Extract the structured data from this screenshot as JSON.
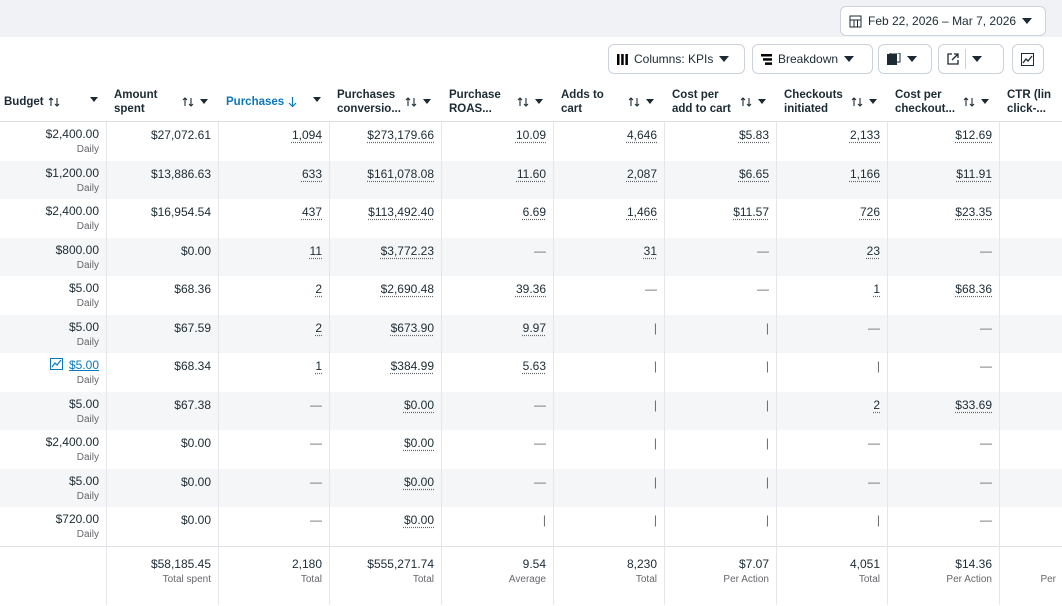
{
  "date_range": "Feb 22, 2026 – Mar 7, 2026",
  "toolbar": {
    "columns": "Columns: KPIs",
    "breakdown": "Breakdown"
  },
  "table": {
    "headers": [
      "Budget",
      "Amount spent",
      "Purchases",
      "Purchases conversio...",
      "Purchase ROAS...",
      "Adds to cart",
      "Cost per add to cart",
      "Checkouts initiated",
      "Cost per checkout...",
      "CTR (lin click-..."
    ],
    "rows": [
      {
        "cells": [
          "$2,400.00",
          "$27,072.61",
          "1,094",
          "$273,179.66",
          "10.09",
          "4,646",
          "$5.83",
          "2,133",
          "$12.69"
        ],
        "budget_note": "Daily"
      },
      {
        "cells": [
          "$1,200.00",
          "$13,886.63",
          "633",
          "$161,078.08",
          "11.60",
          "2,087",
          "$6.65",
          "1,166",
          "$11.91"
        ],
        "budget_note": "Daily"
      },
      {
        "cells": [
          "$2,400.00",
          "$16,954.54",
          "437",
          "$113,492.40",
          "6.69",
          "1,466",
          "$11.57",
          "726",
          "$23.35"
        ],
        "budget_note": "Daily"
      },
      {
        "cells": [
          "$800.00",
          "$0.00",
          "11",
          "$3,772.23",
          "—",
          "31",
          "—",
          "23",
          "—"
        ],
        "budget_note": "Daily"
      },
      {
        "cells": [
          "$5.00",
          "$68.36",
          "2",
          "$2,690.48",
          "39.36",
          "—",
          "—",
          "1",
          "$68.36"
        ],
        "budget_note": "Daily"
      },
      {
        "cells": [
          "$5.00",
          "$67.59",
          "2",
          "$673.90",
          "9.97",
          "|",
          "|",
          "—",
          "—"
        ],
        "budget_note": "Daily"
      },
      {
        "cells": [
          "$5.00",
          "$68.34",
          "1",
          "$384.99",
          "5.63",
          "|",
          "|",
          "|",
          "—"
        ],
        "budget_note": "Daily"
      },
      {
        "cells": [
          "$5.00",
          "$67.38",
          "—",
          "$0.00",
          "—",
          "|",
          "|",
          "2",
          "$33.69"
        ],
        "budget_note": "Daily"
      },
      {
        "cells": [
          "$2,400.00",
          "$0.00",
          "—",
          "$0.00",
          "—",
          "|",
          "|",
          "—",
          "—"
        ],
        "budget_note": "Daily"
      },
      {
        "cells": [
          "$5.00",
          "$0.00",
          "—",
          "$0.00",
          "—",
          "|",
          "|",
          "—",
          "—"
        ],
        "budget_note": "Daily"
      },
      {
        "cells": [
          "$720.00",
          "$0.00",
          "—",
          "$0.00",
          "|",
          "|",
          "|",
          "|",
          "—"
        ],
        "budget_note": "Daily"
      }
    ],
    "totals": [
      {
        "value": "$58,185.45",
        "label": "Total spent"
      },
      {
        "value": "2,180",
        "label": "Total"
      },
      {
        "value": "$555,271.74",
        "label": "Total"
      },
      {
        "value": "9.54",
        "label": "Average"
      },
      {
        "value": "8,230",
        "label": "Total"
      },
      {
        "value": "$7.07",
        "label": "Per Action"
      },
      {
        "value": "4,051",
        "label": "Total"
      },
      {
        "value": "$14.36",
        "label": "Per Action"
      },
      {
        "label": "Per"
      }
    ]
  }
}
